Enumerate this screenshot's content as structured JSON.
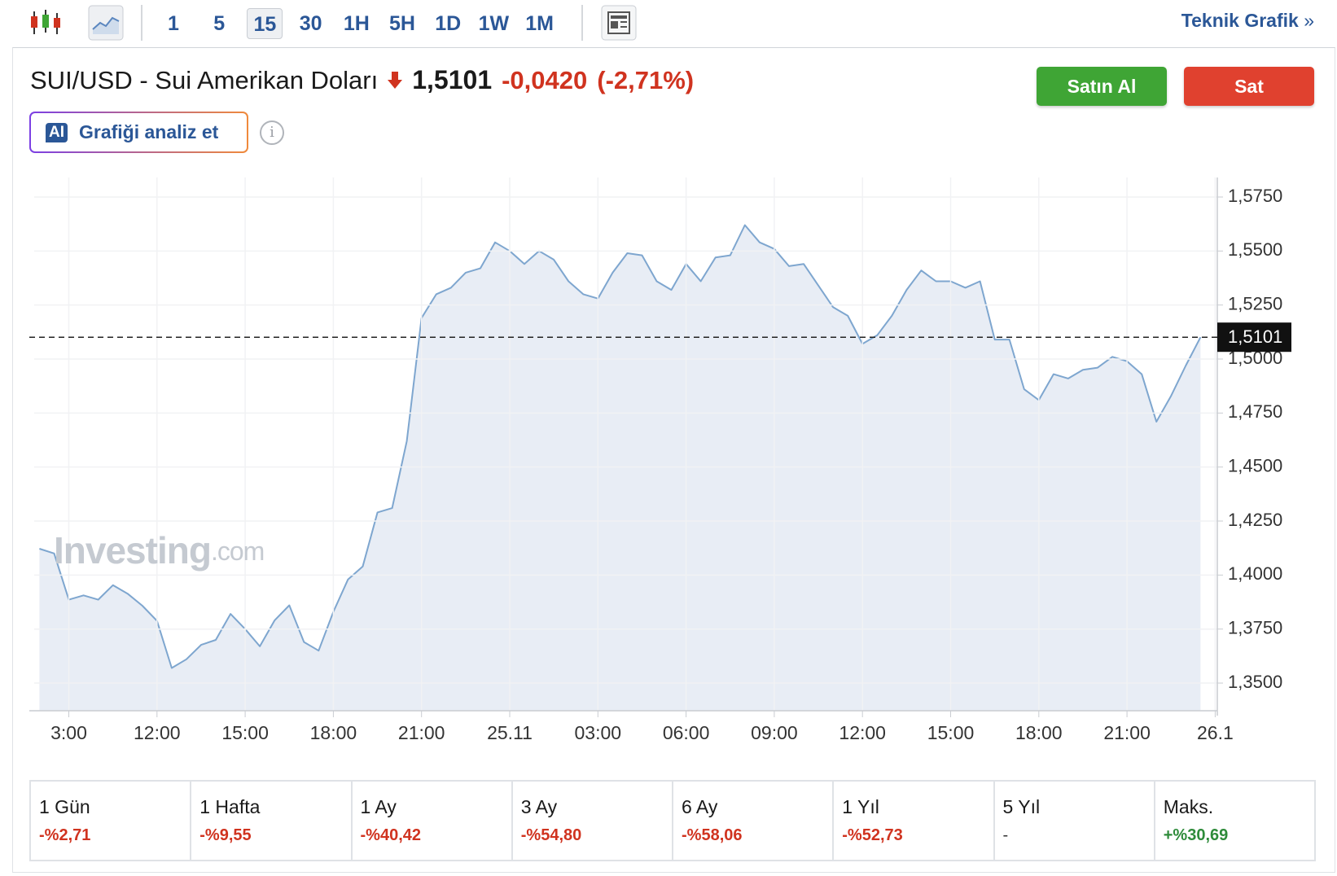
{
  "toolbar": {
    "intervals": [
      "1",
      "5",
      "15",
      "30",
      "1H",
      "5H",
      "1D",
      "1W",
      "1M"
    ],
    "active_interval_index": 2,
    "technical_chart": "Teknik Grafik"
  },
  "header": {
    "symbol_title": "SUI/USD - Sui Amerikan Doları",
    "price": "1,5101",
    "change": "-0,0420",
    "change_percent": "(-2,71%)",
    "buy": "Satın Al",
    "sell": "Sat",
    "ai_badge": "AI",
    "analyze": "Grafiği analiz et"
  },
  "chart_data": {
    "type": "area",
    "watermark": "Investing",
    "watermark_suffix": ".com",
    "color": "#7ea6cf",
    "fill": "#e8edf5",
    "categories": [
      null,
      null,
      "3:00",
      null,
      null,
      null,
      null,
      null,
      "12:00",
      null,
      null,
      null,
      null,
      null,
      "15:00",
      null,
      null,
      null,
      null,
      null,
      "18:00",
      null,
      null,
      null,
      null,
      null,
      "21:00",
      null,
      null,
      null,
      null,
      null,
      "25.11",
      null,
      null,
      null,
      null,
      null,
      "03:00",
      null,
      null,
      null,
      null,
      null,
      "06:00",
      null,
      null,
      null,
      null,
      null,
      "09:00",
      null,
      null,
      null,
      null,
      null,
      "12:00",
      null,
      null,
      null,
      null,
      null,
      "15:00",
      null,
      null,
      null,
      null,
      null,
      "18:00",
      null,
      null,
      null,
      null,
      null,
      "21:00",
      null,
      null,
      null,
      null,
      null,
      "26.1"
    ],
    "values": [
      1.4122,
      1.41,
      1.3886,
      1.3906,
      1.3886,
      1.3953,
      1.3914,
      1.3858,
      1.3788,
      1.357,
      1.361,
      1.3677,
      1.37,
      1.382,
      1.375,
      1.367,
      1.379,
      1.386,
      1.369,
      1.365,
      1.383,
      1.398,
      1.404,
      1.429,
      1.431,
      1.462,
      1.519,
      1.53,
      1.533,
      1.54,
      1.542,
      1.554,
      1.55,
      1.544,
      1.55,
      1.546,
      1.536,
      1.53,
      1.528,
      1.54,
      1.549,
      1.548,
      1.536,
      1.532,
      1.544,
      1.536,
      1.547,
      1.548,
      1.562,
      1.554,
      1.551,
      1.543,
      1.544,
      1.534,
      1.524,
      1.52,
      1.507,
      1.511,
      1.52,
      1.532,
      1.541,
      1.536,
      1.536,
      1.533,
      1.536,
      1.509,
      1.509,
      1.486,
      1.481,
      1.493,
      1.491,
      1.495,
      1.496,
      1.501,
      1.499,
      1.493,
      1.471,
      1.483,
      1.497,
      1.5101,
      null
    ],
    "current_price": 1.5101,
    "ylim": [
      1.3372,
      1.5814
    ],
    "yticks": [
      {
        "value": 1.35,
        "label": "1,3500"
      },
      {
        "value": 1.375,
        "label": "1,3750"
      },
      {
        "value": 1.4,
        "label": "1,4000"
      },
      {
        "value": 1.425,
        "label": "1,4250"
      },
      {
        "value": 1.45,
        "label": "1,4500"
      },
      {
        "value": 1.475,
        "label": "1,4750"
      },
      {
        "value": 1.5,
        "label": "1,5000"
      },
      {
        "value": 1.525,
        "label": "1,5250"
      },
      {
        "value": 1.55,
        "label": "1,5500"
      },
      {
        "value": 1.575,
        "label": "1,5750"
      }
    ],
    "grid": true
  },
  "performance": [
    {
      "period": "1 Gün",
      "change": "-%2,71"
    },
    {
      "period": "1 Hafta",
      "change": "-%9,55"
    },
    {
      "period": "1 Ay",
      "change": "-%40,42"
    },
    {
      "period": "3 Ay",
      "change": "-%54,80"
    },
    {
      "period": "6 Ay",
      "change": "-%58,06"
    },
    {
      "period": "1 Yıl",
      "change": "-%52,73"
    },
    {
      "period": "5 Yıl",
      "change": "-"
    },
    {
      "period": "Maks.",
      "change": "+%30,69"
    }
  ]
}
